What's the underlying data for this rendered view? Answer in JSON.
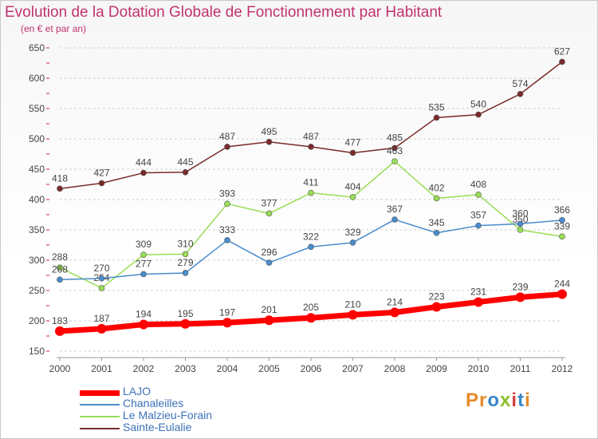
{
  "title": "Evolution de la Dotation Globale de Fonctionnement par Habitant",
  "subtitle": "(en € et par an)",
  "logo": {
    "text": "Proxiti",
    "letters": [
      {
        "ch": "P",
        "color": "#e58a28"
      },
      {
        "ch": "r",
        "color": "#e58a28"
      },
      {
        "ch": "o",
        "color": "#3a86c8"
      },
      {
        "ch": "x",
        "color": "#8bbf2a"
      },
      {
        "ch": "i",
        "color": "#d43f3a"
      },
      {
        "ch": "t",
        "color": "#3a86c8"
      },
      {
        "ch": "i",
        "color": "#e58a28"
      }
    ]
  },
  "chart_data": {
    "type": "line",
    "title": "Evolution de la Dotation Globale de Fonctionnement par Habitant",
    "subtitle": "(en € et par an)",
    "xlabel": "",
    "ylabel": "",
    "x": [
      "2000",
      "2001",
      "2002",
      "2003",
      "2004",
      "2005",
      "2006",
      "2007",
      "2008",
      "2009",
      "2010",
      "2011",
      "2012"
    ],
    "ylim": [
      150,
      650
    ],
    "yticks": [
      150,
      200,
      250,
      300,
      350,
      400,
      450,
      500,
      550,
      600,
      650
    ],
    "grid": "horizontal dashed",
    "legend_position": "bottom-left",
    "series": [
      {
        "name": "LAJO",
        "color": "#ff0000",
        "values": [
          183,
          187,
          194,
          195,
          197,
          201,
          205,
          210,
          214,
          223,
          231,
          239,
          244
        ]
      },
      {
        "name": "Chanaleilles",
        "color": "#4a8ccc",
        "values": [
          268,
          270,
          277,
          279,
          333,
          296,
          322,
          329,
          367,
          345,
          357,
          360,
          366
        ]
      },
      {
        "name": "Le Malzieu-Forain",
        "color": "#99dd55",
        "values": [
          288,
          254,
          309,
          310,
          393,
          377,
          411,
          404,
          463,
          402,
          408,
          350,
          339
        ]
      },
      {
        "name": "Sainte-Eulalie",
        "color": "#7a2a2a",
        "values": [
          418,
          427,
          444,
          445,
          487,
          495,
          487,
          477,
          485,
          535,
          540,
          574,
          627
        ]
      }
    ]
  }
}
